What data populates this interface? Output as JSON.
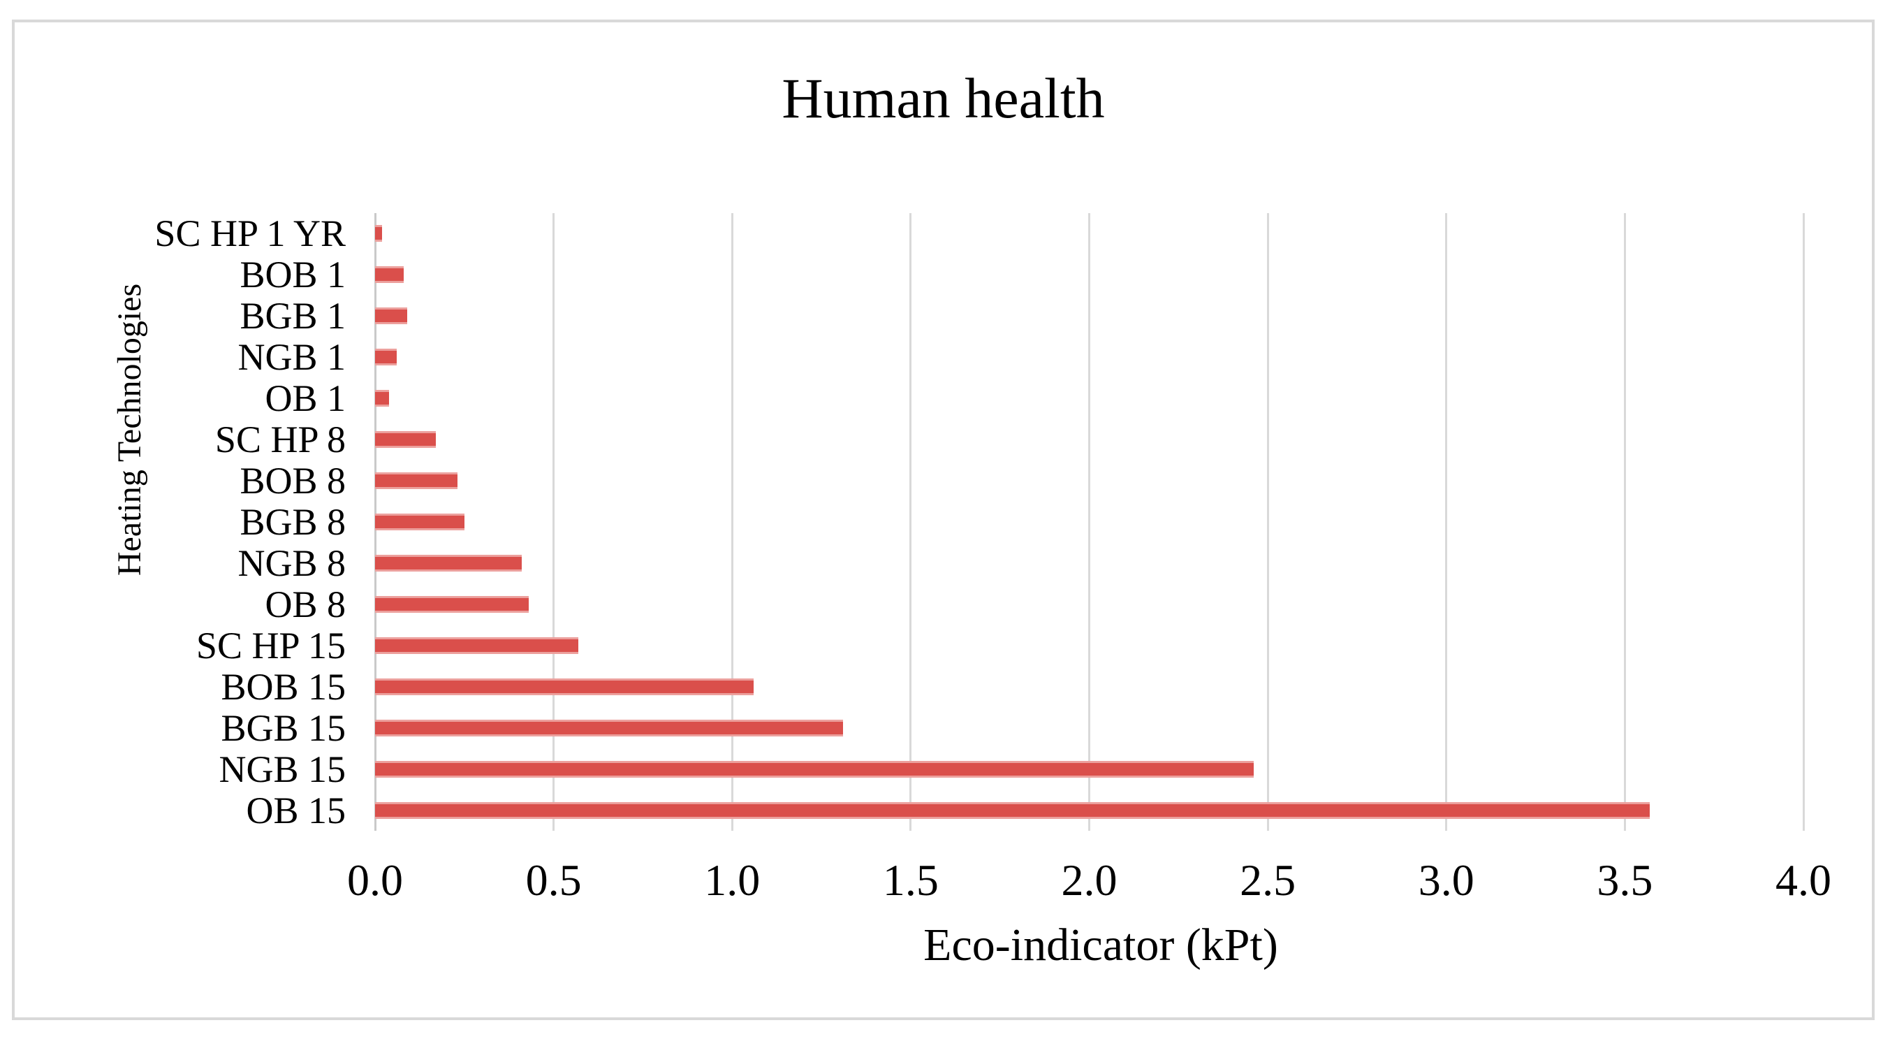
{
  "chart_data": {
    "type": "bar",
    "orientation": "horizontal",
    "title": "Human health",
    "xlabel": "Eco-indicator (kPt)",
    "ylabel": "Heating Technologies",
    "categories": [
      "SC HP 1 YR",
      "BOB 1",
      "BGB 1",
      "NGB 1",
      "OB 1",
      "SC HP 8",
      "BOB 8",
      "BGB 8",
      "NGB 8",
      "OB 8",
      "SC HP 15",
      "BOB 15",
      "BGB 15",
      "NGB 15",
      "OB 15"
    ],
    "values": [
      0.02,
      0.08,
      0.09,
      0.06,
      0.04,
      0.17,
      0.23,
      0.25,
      0.41,
      0.43,
      0.57,
      1.06,
      1.31,
      2.46,
      3.57
    ],
    "xlim": [
      0,
      4
    ],
    "x_ticks": [
      "0.0",
      "0.5",
      "1.0",
      "1.5",
      "2.0",
      "2.5",
      "3.0",
      "3.5",
      "4.0"
    ],
    "grid": true,
    "legend": false,
    "colors": {
      "bar_fill": "#da4f4b",
      "bar_edge": "#eca09d",
      "gridline": "#d9d9d9",
      "axis_line": "#c9c9c9",
      "frame_border": "#d9d9d9",
      "text": "#000000",
      "background": "#ffffff"
    }
  }
}
